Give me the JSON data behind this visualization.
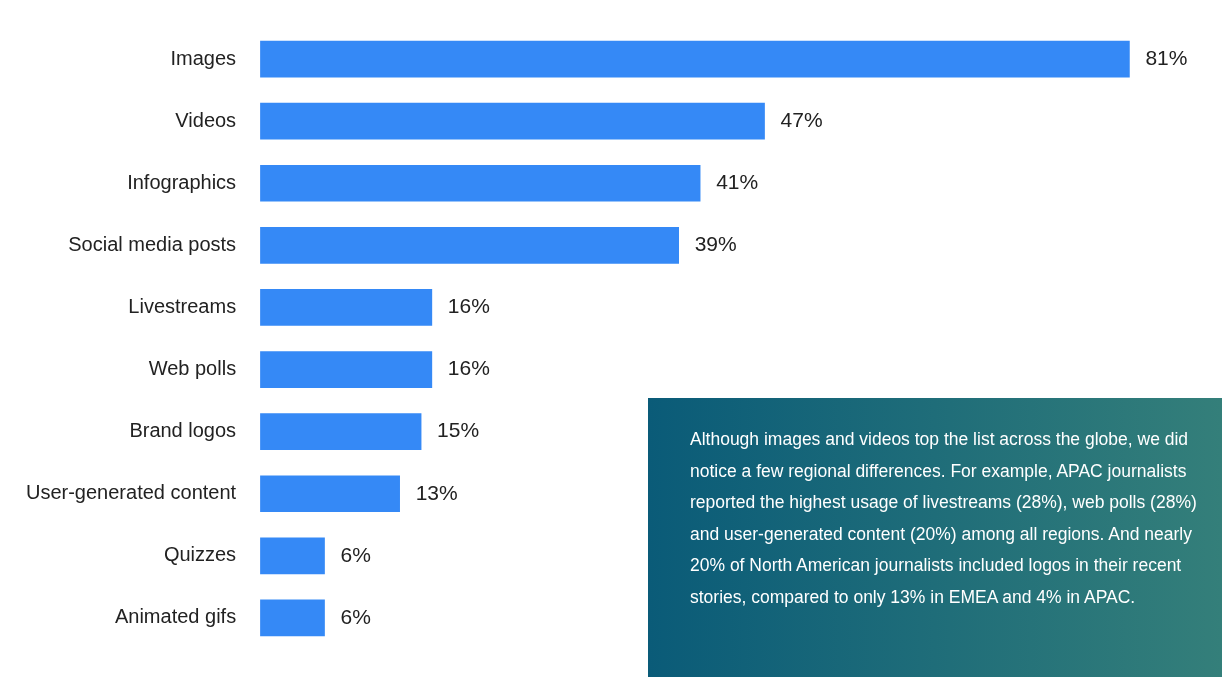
{
  "chart_data": {
    "type": "bar",
    "orientation": "horizontal",
    "categories": [
      "Images",
      "Videos",
      "Infographics",
      "Social media posts",
      "Livestreams",
      "Web polls",
      "Brand logos",
      "User-generated content",
      "Quizzes",
      "Animated gifs"
    ],
    "values": [
      81,
      47,
      41,
      39,
      16,
      16,
      15,
      13,
      6,
      6
    ],
    "value_labels": [
      "81%",
      "47%",
      "41%",
      "39%",
      "16%",
      "16%",
      "15%",
      "13%",
      "6%",
      "6%"
    ],
    "color": "#3589f6",
    "tick_labels": "y",
    "legend": false,
    "grid": false,
    "annotations": [
      "Although images and videos top the list across the globe, we did notice a few regional differences. For example, APAC journalists reported the highest usage of livestreams (28%), web polls (28%) and user-generated content (20%) among all regions. And nearly 20% of North American journalists included logos in their recent stories, compared to only 13% in EMEA and 4% in APAC."
    ]
  }
}
